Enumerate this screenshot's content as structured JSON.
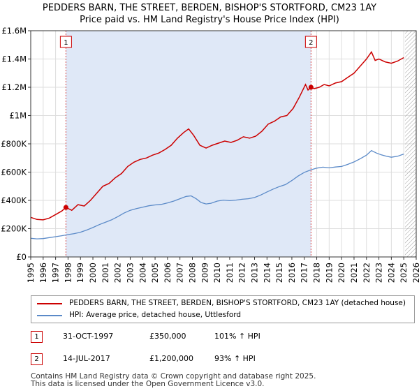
{
  "header": {
    "title": "PEDDERS BARN, THE STREET, BERDEN, BISHOP'S STORTFORD, CM23 1AY",
    "subtitle": "Price paid vs. HM Land Registry's House Price Index (HPI)"
  },
  "colors": {
    "property": "#cc0000",
    "hpi": "#5b8ac8",
    "shade": "#dfe8f7",
    "hatch": "#999999"
  },
  "chart_data": {
    "type": "line",
    "title": "Price paid vs. HM Land Registry's House Price Index (HPI)",
    "xlim": [
      1995,
      2026
    ],
    "ylim": [
      0,
      1600000
    ],
    "y_ticks": [
      0,
      200000,
      400000,
      600000,
      800000,
      1000000,
      1200000,
      1400000,
      1600000
    ],
    "y_tick_labels": [
      "£0",
      "£200K",
      "£400K",
      "£600K",
      "£800K",
      "£1M",
      "£1.2M",
      "£1.4M",
      "£1.6M"
    ],
    "x_tick_labels": [
      "1995",
      "1996",
      "1997",
      "1998",
      "1999",
      "2000",
      "2001",
      "2002",
      "2003",
      "2004",
      "2005",
      "2006",
      "2007",
      "2008",
      "2009",
      "2010",
      "2011",
      "2012",
      "2013",
      "2014",
      "2015",
      "2016",
      "2017",
      "2018",
      "2019",
      "2020",
      "2021",
      "2022",
      "2023",
      "2024",
      "2025",
      "2026"
    ],
    "shaded_range": [
      1997.83,
      2017.54
    ],
    "forecast_start": 2025.1,
    "series": [
      {
        "name": "PEDDERS BARN, THE STREET, BERDEN, BISHOP'S STORTFORD, CM23 1AY (detached house)",
        "points": [
          [
            1995.0,
            280000
          ],
          [
            1995.5,
            265000
          ],
          [
            1996.0,
            262000
          ],
          [
            1996.5,
            275000
          ],
          [
            1997.0,
            300000
          ],
          [
            1997.5,
            325000
          ],
          [
            1997.83,
            350000
          ],
          [
            1998.3,
            330000
          ],
          [
            1998.8,
            370000
          ],
          [
            1999.3,
            360000
          ],
          [
            1999.8,
            400000
          ],
          [
            2000.3,
            450000
          ],
          [
            2000.8,
            500000
          ],
          [
            2001.3,
            520000
          ],
          [
            2001.8,
            560000
          ],
          [
            2002.3,
            590000
          ],
          [
            2002.8,
            640000
          ],
          [
            2003.3,
            670000
          ],
          [
            2003.8,
            690000
          ],
          [
            2004.3,
            700000
          ],
          [
            2004.8,
            720000
          ],
          [
            2005.3,
            735000
          ],
          [
            2005.8,
            760000
          ],
          [
            2006.3,
            790000
          ],
          [
            2006.8,
            840000
          ],
          [
            2007.3,
            880000
          ],
          [
            2007.7,
            905000
          ],
          [
            2008.1,
            860000
          ],
          [
            2008.6,
            790000
          ],
          [
            2009.1,
            770000
          ],
          [
            2009.6,
            790000
          ],
          [
            2010.1,
            805000
          ],
          [
            2010.6,
            820000
          ],
          [
            2011.1,
            810000
          ],
          [
            2011.6,
            825000
          ],
          [
            2012.1,
            850000
          ],
          [
            2012.6,
            840000
          ],
          [
            2013.1,
            855000
          ],
          [
            2013.6,
            890000
          ],
          [
            2014.1,
            940000
          ],
          [
            2014.6,
            960000
          ],
          [
            2015.1,
            990000
          ],
          [
            2015.6,
            1000000
          ],
          [
            2016.1,
            1050000
          ],
          [
            2016.6,
            1130000
          ],
          [
            2017.1,
            1220000
          ],
          [
            2017.3,
            1180000
          ],
          [
            2017.54,
            1200000
          ],
          [
            2017.8,
            1190000
          ],
          [
            2018.2,
            1200000
          ],
          [
            2018.6,
            1220000
          ],
          [
            2019.0,
            1210000
          ],
          [
            2019.5,
            1230000
          ],
          [
            2020.0,
            1240000
          ],
          [
            2020.5,
            1270000
          ],
          [
            2021.0,
            1300000
          ],
          [
            2021.5,
            1350000
          ],
          [
            2022.0,
            1400000
          ],
          [
            2022.4,
            1450000
          ],
          [
            2022.7,
            1390000
          ],
          [
            2023.0,
            1400000
          ],
          [
            2023.5,
            1380000
          ],
          [
            2024.0,
            1370000
          ],
          [
            2024.5,
            1385000
          ],
          [
            2025.0,
            1410000
          ]
        ]
      },
      {
        "name": "HPI: Average price, detached house, Uttlesford",
        "points": [
          [
            1995.0,
            132000
          ],
          [
            1995.5,
            128000
          ],
          [
            1996.0,
            130000
          ],
          [
            1996.5,
            137000
          ],
          [
            1997.0,
            143000
          ],
          [
            1997.5,
            150000
          ],
          [
            1998.0,
            158000
          ],
          [
            1998.5,
            165000
          ],
          [
            1999.0,
            175000
          ],
          [
            1999.5,
            190000
          ],
          [
            2000.0,
            208000
          ],
          [
            2000.5,
            228000
          ],
          [
            2001.0,
            245000
          ],
          [
            2001.5,
            262000
          ],
          [
            2002.0,
            285000
          ],
          [
            2002.5,
            310000
          ],
          [
            2003.0,
            330000
          ],
          [
            2003.5,
            342000
          ],
          [
            2004.0,
            352000
          ],
          [
            2004.5,
            362000
          ],
          [
            2005.0,
            368000
          ],
          [
            2005.5,
            372000
          ],
          [
            2006.0,
            382000
          ],
          [
            2006.5,
            395000
          ],
          [
            2007.0,
            412000
          ],
          [
            2007.5,
            428000
          ],
          [
            2007.9,
            432000
          ],
          [
            2008.3,
            412000
          ],
          [
            2008.7,
            385000
          ],
          [
            2009.1,
            375000
          ],
          [
            2009.5,
            380000
          ],
          [
            2010.0,
            395000
          ],
          [
            2010.5,
            402000
          ],
          [
            2011.0,
            398000
          ],
          [
            2011.5,
            402000
          ],
          [
            2012.0,
            408000
          ],
          [
            2012.5,
            412000
          ],
          [
            2013.0,
            420000
          ],
          [
            2013.5,
            438000
          ],
          [
            2014.0,
            460000
          ],
          [
            2014.5,
            480000
          ],
          [
            2015.0,
            498000
          ],
          [
            2015.5,
            512000
          ],
          [
            2016.0,
            540000
          ],
          [
            2016.5,
            572000
          ],
          [
            2017.0,
            598000
          ],
          [
            2017.5,
            615000
          ],
          [
            2018.0,
            628000
          ],
          [
            2018.5,
            635000
          ],
          [
            2019.0,
            630000
          ],
          [
            2019.5,
            636000
          ],
          [
            2020.0,
            640000
          ],
          [
            2020.5,
            655000
          ],
          [
            2021.0,
            672000
          ],
          [
            2021.5,
            695000
          ],
          [
            2022.0,
            720000
          ],
          [
            2022.4,
            752000
          ],
          [
            2022.8,
            735000
          ],
          [
            2023.2,
            722000
          ],
          [
            2023.6,
            712000
          ],
          [
            2024.0,
            705000
          ],
          [
            2024.5,
            712000
          ],
          [
            2025.0,
            728000
          ]
        ]
      }
    ],
    "sales": [
      {
        "label": "1",
        "x": 1997.83,
        "price": 350000
      },
      {
        "label": "2",
        "x": 2017.54,
        "price": 1200000
      }
    ]
  },
  "legend": {
    "property_label": "PEDDERS BARN, THE STREET, BERDEN, BISHOP'S STORTFORD, CM23 1AY (detached house)",
    "hpi_label": "HPI: Average price, detached house, Uttlesford"
  },
  "transactions": [
    {
      "marker": "1",
      "date": "31-OCT-1997",
      "price": "£350,000",
      "hpi": "101% ↑ HPI"
    },
    {
      "marker": "2",
      "date": "14-JUL-2017",
      "price": "£1,200,000",
      "hpi": "93% ↑ HPI"
    }
  ],
  "footer": {
    "line1": "Contains HM Land Registry data © Crown copyright and database right 2025.",
    "line2": "This data is licensed under the Open Government Licence v3.0."
  }
}
